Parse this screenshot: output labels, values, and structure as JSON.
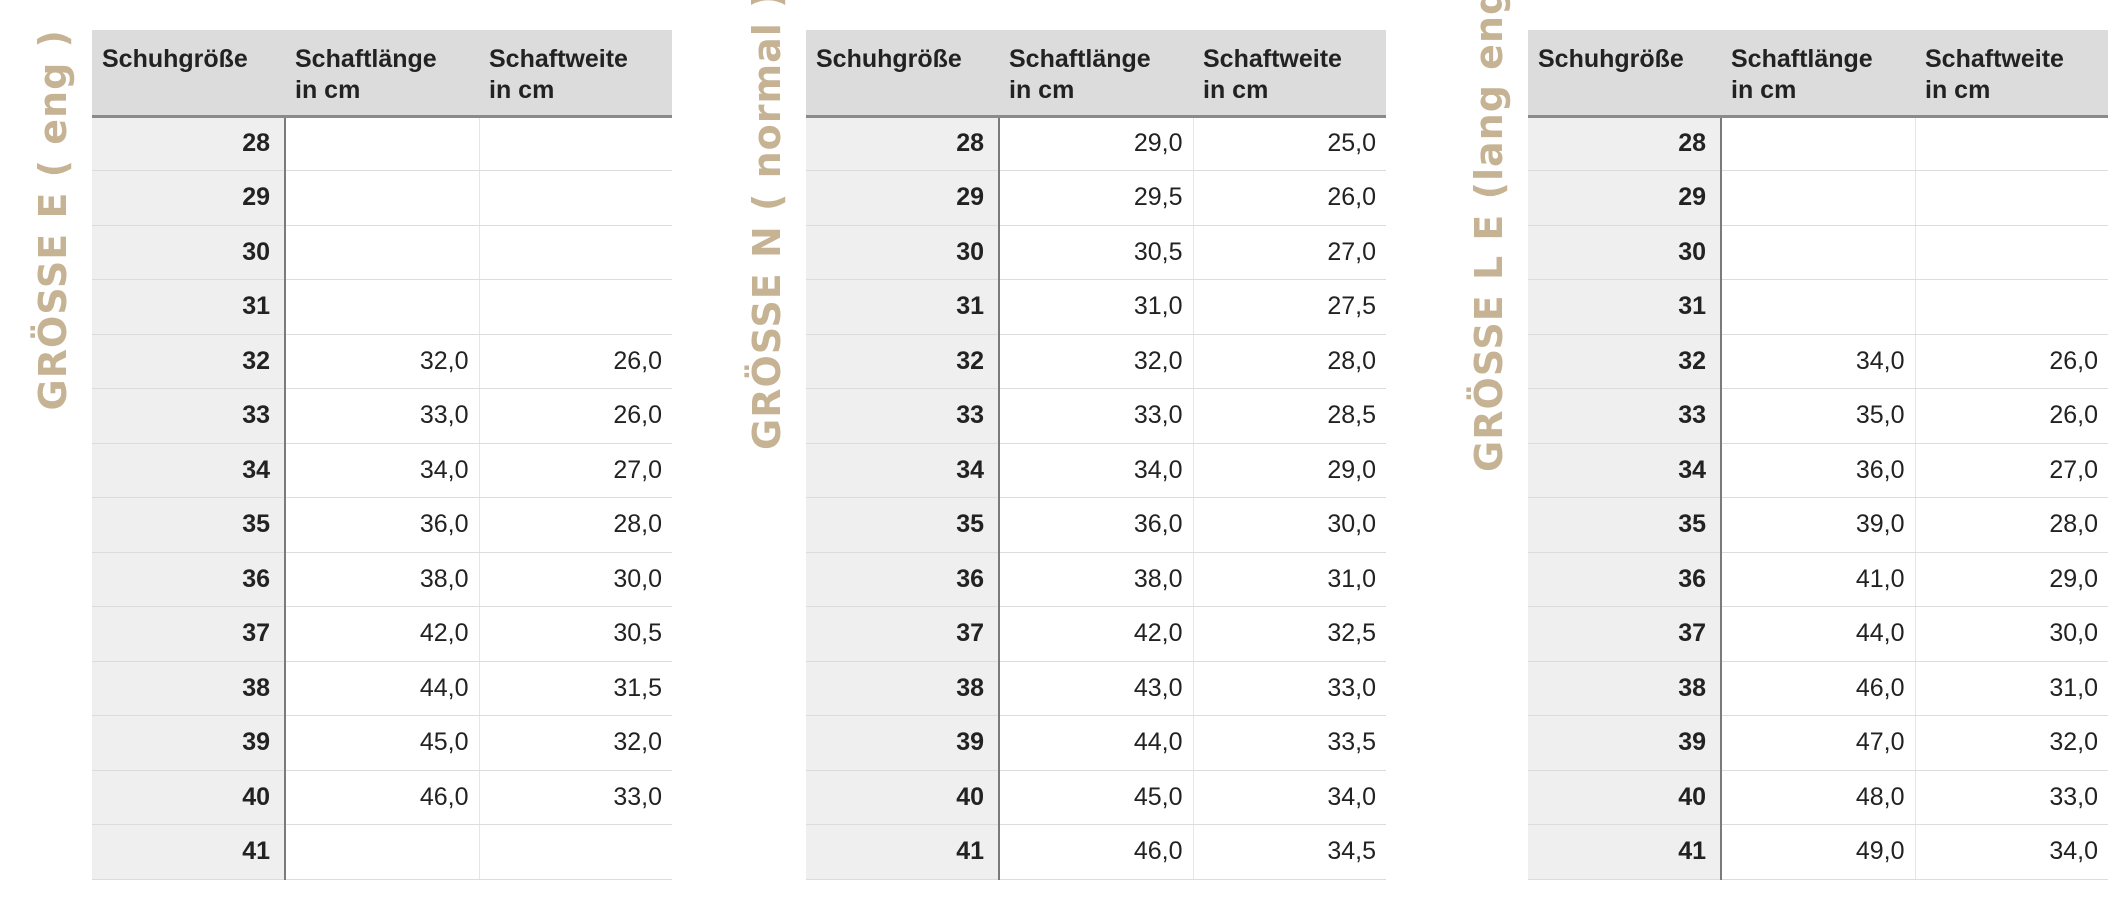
{
  "headers": {
    "size": "Schuhgröße",
    "length": "Schaftlänge\nin cm",
    "width": "Schaftweite\nin cm"
  },
  "tables": [
    {
      "label": "GRÖSSE E ( eng )",
      "rows": [
        {
          "size": "28",
          "length": "",
          "width": ""
        },
        {
          "size": "29",
          "length": "",
          "width": ""
        },
        {
          "size": "30",
          "length": "",
          "width": ""
        },
        {
          "size": "31",
          "length": "",
          "width": ""
        },
        {
          "size": "32",
          "length": "32,0",
          "width": "26,0"
        },
        {
          "size": "33",
          "length": "33,0",
          "width": "26,0"
        },
        {
          "size": "34",
          "length": "34,0",
          "width": "27,0"
        },
        {
          "size": "35",
          "length": "36,0",
          "width": "28,0"
        },
        {
          "size": "36",
          "length": "38,0",
          "width": "30,0"
        },
        {
          "size": "37",
          "length": "42,0",
          "width": "30,5"
        },
        {
          "size": "38",
          "length": "44,0",
          "width": "31,5"
        },
        {
          "size": "39",
          "length": "45,0",
          "width": "32,0"
        },
        {
          "size": "40",
          "length": "46,0",
          "width": "33,0"
        },
        {
          "size": "41",
          "length": "",
          "width": ""
        }
      ]
    },
    {
      "label": "GRÖSSE N ( normal )",
      "rows": [
        {
          "size": "28",
          "length": "29,0",
          "width": "25,0"
        },
        {
          "size": "29",
          "length": "29,5",
          "width": "26,0"
        },
        {
          "size": "30",
          "length": "30,5",
          "width": "27,0"
        },
        {
          "size": "31",
          "length": "31,0",
          "width": "27,5"
        },
        {
          "size": "32",
          "length": "32,0",
          "width": "28,0"
        },
        {
          "size": "33",
          "length": "33,0",
          "width": "28,5"
        },
        {
          "size": "34",
          "length": "34,0",
          "width": "29,0"
        },
        {
          "size": "35",
          "length": "36,0",
          "width": "30,0"
        },
        {
          "size": "36",
          "length": "38,0",
          "width": "31,0"
        },
        {
          "size": "37",
          "length": "42,0",
          "width": "32,5"
        },
        {
          "size": "38",
          "length": "43,0",
          "width": "33,0"
        },
        {
          "size": "39",
          "length": "44,0",
          "width": "33,5"
        },
        {
          "size": "40",
          "length": "45,0",
          "width": "34,0"
        },
        {
          "size": "41",
          "length": "46,0",
          "width": "34,5"
        }
      ]
    },
    {
      "label": "GRÖSSE L E (lang eng)",
      "rows": [
        {
          "size": "28",
          "length": "",
          "width": ""
        },
        {
          "size": "29",
          "length": "",
          "width": ""
        },
        {
          "size": "30",
          "length": "",
          "width": ""
        },
        {
          "size": "31",
          "length": "",
          "width": ""
        },
        {
          "size": "32",
          "length": "34,0",
          "width": "26,0"
        },
        {
          "size": "33",
          "length": "35,0",
          "width": "26,0"
        },
        {
          "size": "34",
          "length": "36,0",
          "width": "27,0"
        },
        {
          "size": "35",
          "length": "39,0",
          "width": "28,0"
        },
        {
          "size": "36",
          "length": "41,0",
          "width": "29,0"
        },
        {
          "size": "37",
          "length": "44,0",
          "width": "30,0"
        },
        {
          "size": "38",
          "length": "46,0",
          "width": "31,0"
        },
        {
          "size": "39",
          "length": "47,0",
          "width": "32,0"
        },
        {
          "size": "40",
          "length": "48,0",
          "width": "33,0"
        },
        {
          "size": "41",
          "length": "49,0",
          "width": "34,0"
        }
      ]
    }
  ]
}
